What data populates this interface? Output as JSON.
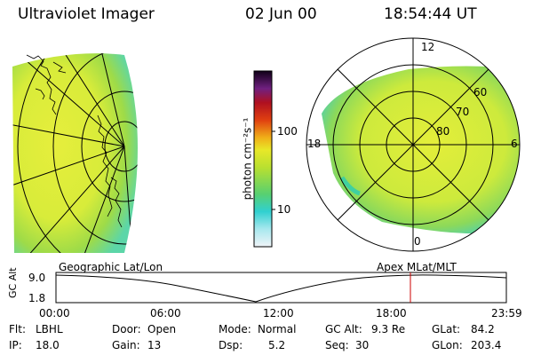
{
  "header": {
    "instrument": "Ultraviolet Imager",
    "date": "02 Jun 00",
    "time": "18:54:44 UT"
  },
  "colorbar": {
    "unit_label": "photon cm⁻²s⁻¹",
    "ticks": [
      "100",
      "10"
    ],
    "scale": "log"
  },
  "polar_plot": {
    "mlt_labels": {
      "top": "12",
      "left": "18",
      "right": "6",
      "bottom": "0"
    },
    "lat_labels": [
      "60",
      "70",
      "80"
    ]
  },
  "panel_labels": {
    "left": "Geographic Lat/Lon",
    "right": "Apex MLat/MLT"
  },
  "gc_alt_plot": {
    "ylabel": "GC Alt",
    "yticks": [
      "9.0",
      "1.8"
    ],
    "xticks": [
      "00:00",
      "06:00",
      "12:00",
      "18:00",
      "23:59"
    ],
    "marker_time": "18:54",
    "marker_color": "#cc0000"
  },
  "info": {
    "flt_label": "Flt:",
    "flt_value": "LBHL",
    "ip_label": "IP:",
    "ip_value": "18.0",
    "door_label": "Door:",
    "door_value": "Open",
    "gain_label": "Gain:",
    "gain_value": "13",
    "mode_label": "Mode:",
    "mode_value": "Normal",
    "dsp_label": "Dsp:",
    "dsp_value": "5.2",
    "gcalt_label": "GC Alt:",
    "gcalt_value": "9.3 Re",
    "seq_label": "Seq:",
    "seq_value": "30",
    "glat_label": "GLat:",
    "glat_value": "84.2",
    "glon_label": "GLon:",
    "glon_value": "203.4"
  }
}
